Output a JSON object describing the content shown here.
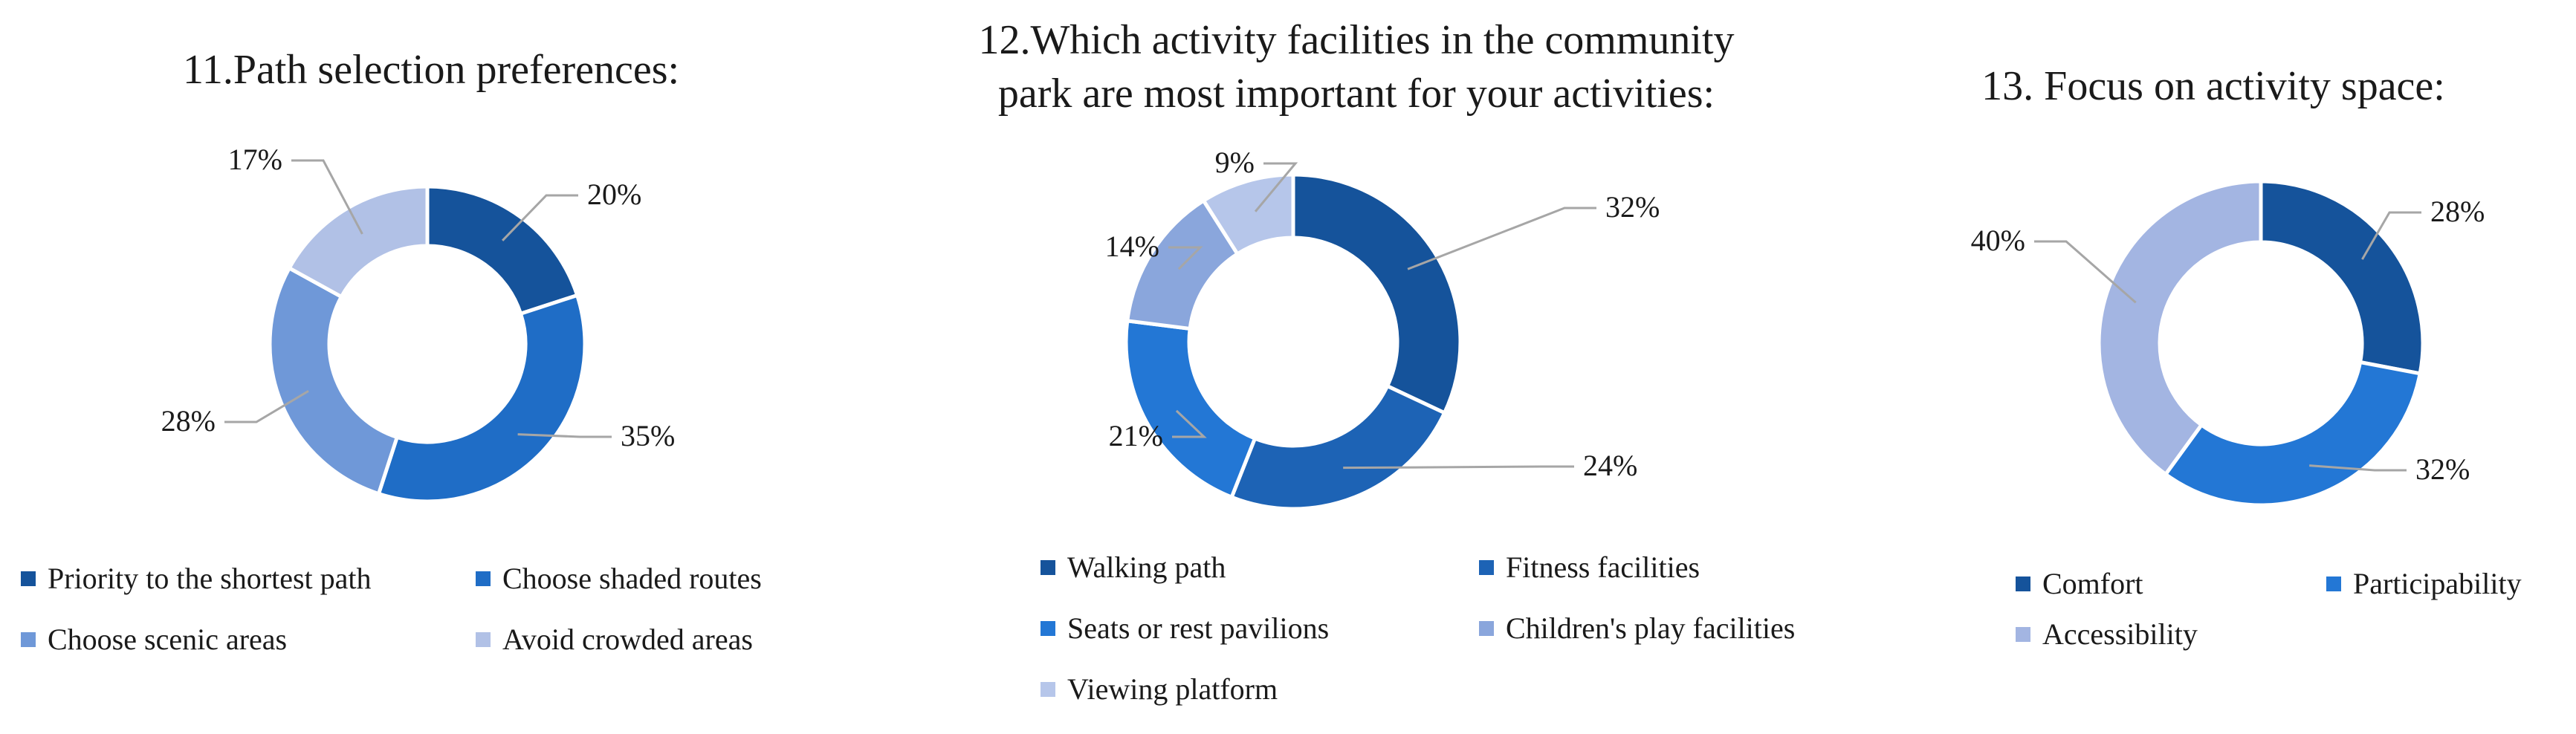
{
  "chart_data": [
    {
      "type": "pie",
      "title": "11.Path selection preferences:",
      "categories": [
        "Priority to the shortest path",
        "Choose shaded routes",
        "Choose scenic areas",
        "Avoid crowded areas"
      ],
      "values": [
        20,
        35,
        28,
        17
      ],
      "labels": [
        "20%",
        "35%",
        "28%",
        "17%"
      ],
      "colors": [
        "#15539b",
        "#1f6dc6",
        "#6f98d8",
        "#b1c1e6"
      ],
      "legend": "bottom"
    },
    {
      "type": "pie",
      "title": "12.Which activity facilities in the community park are most important for your activities:",
      "title_lines": [
        "12.Which activity facilities in the community",
        "park are most important for your activities:"
      ],
      "categories": [
        "Walking path",
        "Fitness facilities",
        "Seats or rest pavilions",
        "Children's play facilities",
        "Viewing platform"
      ],
      "values": [
        32,
        24,
        21,
        14,
        9
      ],
      "labels": [
        "32%",
        "24%",
        "21%",
        "14%",
        "9%"
      ],
      "colors": [
        "#15539b",
        "#1d63b5",
        "#2377d5",
        "#8aa6dc",
        "#b6c6ea"
      ],
      "legend": "bottom"
    },
    {
      "type": "pie",
      "title": "13. Focus on activity space:",
      "categories": [
        "Comfort",
        "Participability",
        "Accessibility"
      ],
      "values": [
        28,
        32,
        40
      ],
      "labels": [
        "28%",
        "32%",
        "40%"
      ],
      "colors": [
        "#15539b",
        "#2377d5",
        "#a3b5e2"
      ],
      "legend": "bottom"
    }
  ]
}
